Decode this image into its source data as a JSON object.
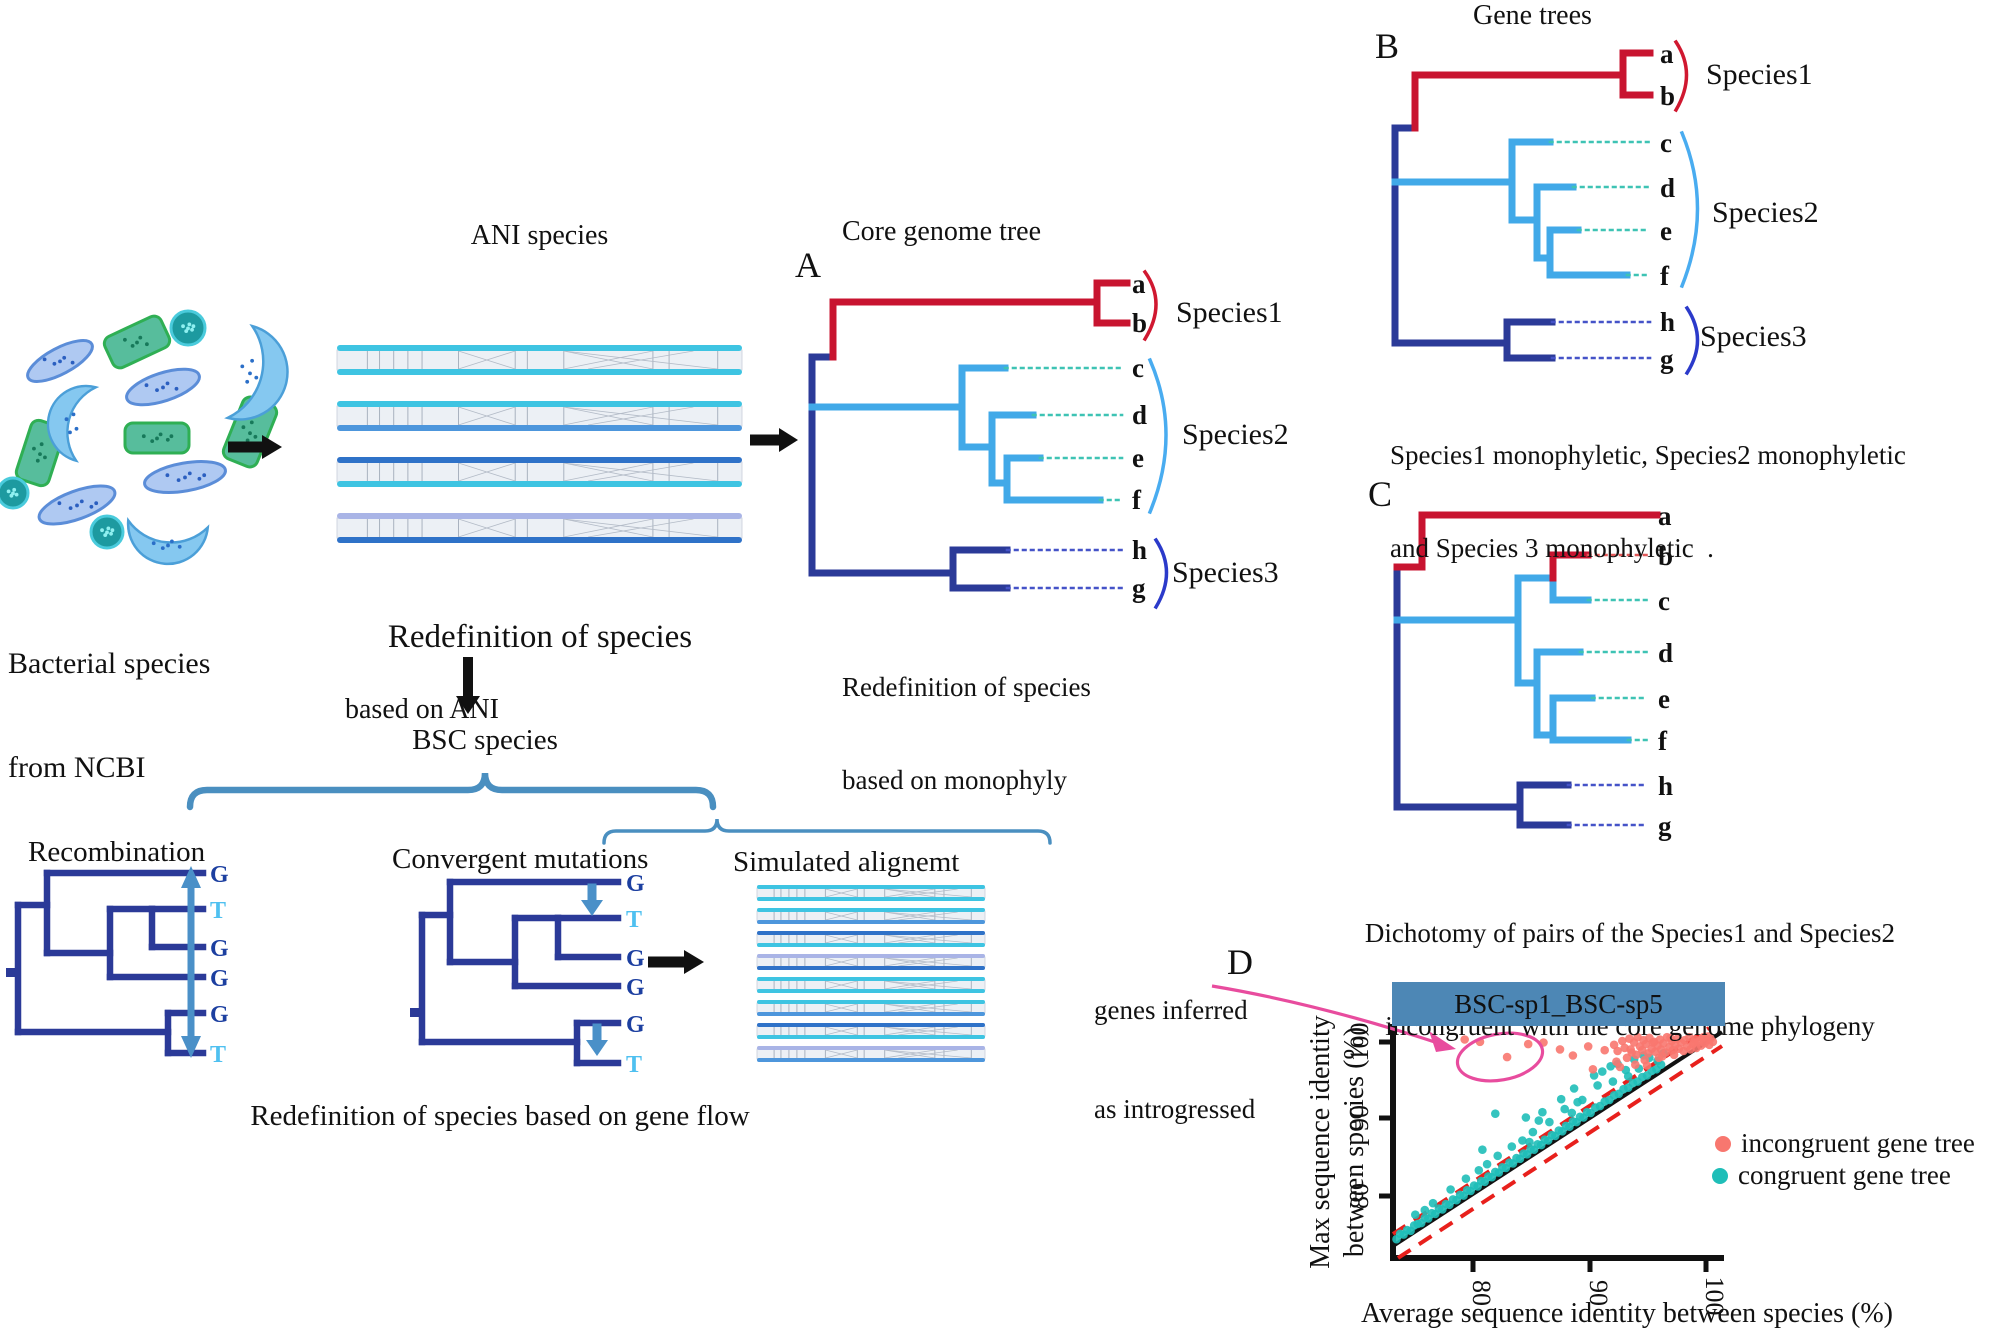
{
  "colors": {
    "tree_navy": "#2B3A98",
    "tree_lightblue": "#41A9E8",
    "tree_red": "#C81430",
    "dotted_teal": "#3EC3B4",
    "dotted_navy": "#4553C8",
    "dotted_red": "#E05858",
    "bracket_red": "#D01830",
    "bracket_lightblue": "#49ACF0",
    "bracket_navy": "#2B3ACA",
    "steel_blue": "#4A8FC0",
    "black_arrow": "#111111",
    "banner_bg": "#4D87B5",
    "incongruent": "#F8776F",
    "congruent": "#1FBEB8",
    "pink_annotation": "#E84C9E",
    "dashed_red": "#E8201C",
    "nucleotide_G": "#1C3FA0",
    "nucleotide_T": "#4FC0F0",
    "align_cyan": "#3EC4E2",
    "align_blue": "#4D96DC",
    "align_darkblue": "#2F72C8",
    "align_periwinkle": "#A9B4E6",
    "bacteria_ellipse": "#AFC9F2",
    "bacteria_green": "#57BD9C",
    "bacteria_teal": "#1D9AA0",
    "bacteria_crescent": "#85C8F0"
  },
  "intro": {
    "bacteria_caption_line1": "Bacterial species",
    "bacteria_caption_line2": "from NCBI",
    "ani_title": "ANI species",
    "redef_ani_line1": "Redefinition of species",
    "redef_ani_line2": "based on ANI",
    "bsc_label": "BSC species"
  },
  "gene_flow": {
    "recombination_label": "Recombination",
    "convergent_label": "Convergent mutations",
    "simulated_label": "Simulated alignemt",
    "caption": "Redefinition of species based on gene flow",
    "recombination_tips": [
      "G",
      "T",
      "G",
      "G",
      "G",
      "T"
    ],
    "convergent_tips": [
      "G",
      "T",
      "G",
      "G",
      "G",
      "T"
    ],
    "ani_alignment_rows": [
      [
        "align_cyan",
        "align_cyan"
      ],
      [
        "align_cyan",
        "align_blue"
      ],
      [
        "align_darkblue",
        "align_cyan"
      ],
      [
        "align_periwinkle",
        "align_darkblue"
      ]
    ],
    "simulated_alignment_rows": [
      [
        "align_cyan",
        "align_cyan"
      ],
      [
        "align_cyan",
        "align_blue"
      ],
      [
        "align_darkblue",
        "align_cyan"
      ],
      [
        "align_periwinkle",
        "align_darkblue"
      ],
      [
        "align_cyan",
        "align_cyan"
      ],
      [
        "align_cyan",
        "align_blue"
      ],
      [
        "align_darkblue",
        "align_cyan"
      ],
      [
        "align_periwinkle",
        "align_blue"
      ]
    ]
  },
  "panelA": {
    "letter": "A",
    "title": "Core genome tree",
    "tips": [
      "a",
      "b",
      "c",
      "d",
      "e",
      "f",
      "h",
      "g"
    ],
    "species_labels": [
      "Species1",
      "Species2",
      "Species3"
    ],
    "caption_line1": "Redefinition of species",
    "caption_line2": "based on monophyly"
  },
  "panelB": {
    "letter": "B",
    "title": "Gene trees",
    "tips": [
      "a",
      "b",
      "c",
      "d",
      "e",
      "f",
      "h",
      "g"
    ],
    "species_labels": [
      "Species1",
      "Species2",
      "Species3"
    ],
    "caption_line1": "Species1 monophyletic, Species2 monophyletic",
    "caption_line2": "and Species 3 monophyletic  ."
  },
  "panelC": {
    "letter": "C",
    "tips": [
      "a",
      "b",
      "c",
      "d",
      "e",
      "f",
      "h",
      "g"
    ],
    "caption_line1": "Dichotomy of pairs of the Species1 and Species2",
    "caption_line2": "incongruent with the core genome phylogeny"
  },
  "panelD": {
    "letter": "D",
    "annotation_line1": "genes inferred",
    "annotation_line2": "as introgressed",
    "banner_title": "BSC-sp1_BSC-sp5",
    "ylabel_line1": "Max sequence identity",
    "ylabel_line2": "between species (%)",
    "xlabel": "Average sequence identity between species (%)",
    "legend": [
      {
        "label": "incongruent gene tree",
        "color": "#F8776F"
      },
      {
        "label": "congruent gene tree",
        "color": "#1FBEB8"
      }
    ]
  },
  "chart_data": {
    "type": "scatter",
    "title": "BSC-sp1_BSC-sp5",
    "xlabel": "Average sequence identity between species (%)",
    "ylabel": "Max sequence identity between species (%)",
    "xlim": [
      73.3,
      101.3
    ],
    "ylim": [
      71.8,
      101.8
    ],
    "xticks": [
      80,
      90,
      100
    ],
    "yticks": [
      80,
      90,
      100
    ],
    "xtick_labels": [
      "80",
      "90",
      "100"
    ],
    "ytick_labels": [
      "80",
      "90",
      "100"
    ],
    "grid": false,
    "legend_position": "right",
    "reference_lines": [
      {
        "type": "identity",
        "style": "solid",
        "color": "#111111"
      },
      {
        "type": "identity_offset",
        "offset": 1.6,
        "style": "dashed",
        "color": "#E8201C"
      },
      {
        "type": "identity_offset",
        "offset": -1.6,
        "style": "dashed",
        "color": "#E8201C"
      }
    ],
    "annotation": {
      "text": "genes inferred as introgressed",
      "ellipse_center_x": 82.4,
      "ellipse_center_y": 98.1,
      "ellipse_rx": 3.6,
      "ellipse_ry": 2.9
    },
    "series": [
      {
        "name": "incongruent gene tree",
        "color": "#F8776F",
        "points": [
          [
            79.4,
            100.3
          ],
          [
            80.7,
            100.0
          ],
          [
            83.0,
            98.0
          ],
          [
            84.8,
            99.7
          ],
          [
            86.1,
            99.9
          ],
          [
            87.5,
            99.0
          ],
          [
            88.6,
            98.2
          ],
          [
            89.9,
            99.4
          ],
          [
            90.3,
            96.4
          ],
          [
            91.3,
            98.9
          ],
          [
            92.1,
            99.6
          ],
          [
            92.4,
            98.8
          ],
          [
            92.8,
            100.1
          ],
          [
            93.0,
            99.2
          ],
          [
            93.2,
            97.9
          ],
          [
            93.4,
            100.4
          ],
          [
            93.6,
            98.6
          ],
          [
            93.8,
            99.9
          ],
          [
            94.0,
            98.3
          ],
          [
            94.1,
            100.6
          ],
          [
            94.3,
            99.4
          ],
          [
            94.5,
            98.9
          ],
          [
            94.6,
            100.2
          ],
          [
            94.8,
            99.7
          ],
          [
            95.0,
            98.5
          ],
          [
            95.1,
            100.5
          ],
          [
            95.3,
            99.1
          ],
          [
            95.5,
            100.0
          ],
          [
            95.6,
            98.7
          ],
          [
            95.8,
            99.5
          ],
          [
            96.0,
            100.3
          ],
          [
            96.1,
            99.0
          ],
          [
            96.3,
            99.8
          ],
          [
            96.5,
            98.6
          ],
          [
            96.6,
            100.6
          ],
          [
            96.8,
            99.3
          ],
          [
            97.0,
            100.1
          ],
          [
            97.1,
            98.9
          ],
          [
            97.3,
            99.6
          ],
          [
            97.5,
            100.4
          ],
          [
            97.6,
            99.1
          ],
          [
            97.8,
            99.9
          ],
          [
            98.0,
            98.8
          ],
          [
            98.1,
            100.2
          ],
          [
            98.3,
            99.4
          ],
          [
            98.5,
            100.6
          ],
          [
            98.6,
            99.0
          ],
          [
            98.8,
            99.7
          ],
          [
            99.0,
            100.3
          ],
          [
            99.1,
            99.2
          ],
          [
            99.3,
            100.0
          ],
          [
            99.5,
            99.5
          ],
          [
            99.6,
            100.5
          ],
          [
            99.8,
            99.8
          ],
          [
            100.0,
            100.2
          ],
          [
            100.2,
            99.6
          ],
          [
            100.3,
            100.4
          ],
          [
            100.5,
            100.0
          ],
          [
            93.9,
            97.0
          ],
          [
            94.7,
            97.6
          ],
          [
            95.9,
            97.9
          ],
          [
            97.2,
            98.3
          ],
          [
            92.3,
            97.4
          ],
          [
            96.2,
            98.1
          ],
          [
            98.9,
            99.9
          ],
          [
            99.7,
            100.6
          ],
          [
            100.1,
            100.7
          ],
          [
            95.4,
            99.9
          ],
          [
            96.9,
            100.5
          ],
          [
            93.5,
            99.0
          ],
          [
            92.6,
            96.7
          ],
          [
            94.9,
            96.9
          ]
        ]
      },
      {
        "name": "congruent gene tree",
        "color": "#1FBEB8",
        "points": [
          [
            73.6,
            74.2
          ],
          [
            73.9,
            74.9
          ],
          [
            74.2,
            74.8
          ],
          [
            74.5,
            75.4
          ],
          [
            74.8,
            75.3
          ],
          [
            75.1,
            76.0
          ],
          [
            75.4,
            76.2
          ],
          [
            75.7,
            76.3
          ],
          [
            76.0,
            77.0
          ],
          [
            76.3,
            76.9
          ],
          [
            76.6,
            77.6
          ],
          [
            76.9,
            77.5
          ],
          [
            77.2,
            78.2
          ],
          [
            77.5,
            78.1
          ],
          [
            77.8,
            78.8
          ],
          [
            78.1,
            78.7
          ],
          [
            78.4,
            79.4
          ],
          [
            78.7,
            79.3
          ],
          [
            79.0,
            80.0
          ],
          [
            79.3,
            79.9
          ],
          [
            79.6,
            80.6
          ],
          [
            79.9,
            80.5
          ],
          [
            80.2,
            81.2
          ],
          [
            80.5,
            81.1
          ],
          [
            80.8,
            81.8
          ],
          [
            81.1,
            81.7
          ],
          [
            81.4,
            82.4
          ],
          [
            81.7,
            82.3
          ],
          [
            82.0,
            83.0
          ],
          [
            82.3,
            82.9
          ],
          [
            82.6,
            83.6
          ],
          [
            82.9,
            83.5
          ],
          [
            83.2,
            84.2
          ],
          [
            83.5,
            84.1
          ],
          [
            83.8,
            84.8
          ],
          [
            84.1,
            84.7
          ],
          [
            84.4,
            85.4
          ],
          [
            84.7,
            85.3
          ],
          [
            85.0,
            86.0
          ],
          [
            85.3,
            85.9
          ],
          [
            85.6,
            86.6
          ],
          [
            85.9,
            86.5
          ],
          [
            86.2,
            87.2
          ],
          [
            86.5,
            87.1
          ],
          [
            86.8,
            87.8
          ],
          [
            87.1,
            87.7
          ],
          [
            87.4,
            88.4
          ],
          [
            87.7,
            88.3
          ],
          [
            88.0,
            89.0
          ],
          [
            88.3,
            88.9
          ],
          [
            88.6,
            89.6
          ],
          [
            88.9,
            89.5
          ],
          [
            89.2,
            90.2
          ],
          [
            89.5,
            90.1
          ],
          [
            89.8,
            90.8
          ],
          [
            90.1,
            90.7
          ],
          [
            90.5,
            91.4
          ],
          [
            90.9,
            91.6
          ],
          [
            91.3,
            92.2
          ],
          [
            91.7,
            92.4
          ],
          [
            92.1,
            93.0
          ],
          [
            92.5,
            93.2
          ],
          [
            92.9,
            93.8
          ],
          [
            93.3,
            94.0
          ],
          [
            93.7,
            94.6
          ],
          [
            94.1,
            94.8
          ],
          [
            94.5,
            95.4
          ],
          [
            94.9,
            95.6
          ],
          [
            95.3,
            96.2
          ],
          [
            95.7,
            96.4
          ],
          [
            96.1,
            97.0
          ],
          [
            75.2,
            77.4
          ],
          [
            76.7,
            78.9
          ],
          [
            78.2,
            80.7
          ],
          [
            79.5,
            82.1
          ],
          [
            80.6,
            83.2
          ],
          [
            82.2,
            85.1
          ],
          [
            83.4,
            86.3
          ],
          [
            84.3,
            87.1
          ],
          [
            85.2,
            88.2
          ],
          [
            86.6,
            89.5
          ],
          [
            87.9,
            91.2
          ],
          [
            89.4,
            92.4
          ],
          [
            76.0,
            78.0
          ],
          [
            81.3,
            84.0
          ],
          [
            84.9,
            86.9
          ],
          [
            88.5,
            90.7
          ],
          [
            82.0,
            90.6
          ],
          [
            84.6,
            90.1
          ],
          [
            85.7,
            89.7
          ],
          [
            80.9,
            85.9
          ],
          [
            90.4,
            95.6
          ],
          [
            91.1,
            96.1
          ],
          [
            91.8,
            96.8
          ],
          [
            92.4,
            97.1
          ],
          [
            93.1,
            96.3
          ],
          [
            93.8,
            97.7
          ],
          [
            94.6,
            98.2
          ],
          [
            95.1,
            97.9
          ],
          [
            90.7,
            94.3
          ],
          [
            92.0,
            94.8
          ],
          [
            93.3,
            95.5
          ],
          [
            94.2,
            96.5
          ],
          [
            95.8,
            97.5
          ],
          [
            96.3,
            98.5
          ],
          [
            88.7,
            93.9
          ],
          [
            87.6,
            92.5
          ],
          [
            89.0,
            92.1
          ],
          [
            86.0,
            90.8
          ]
        ]
      }
    ]
  }
}
